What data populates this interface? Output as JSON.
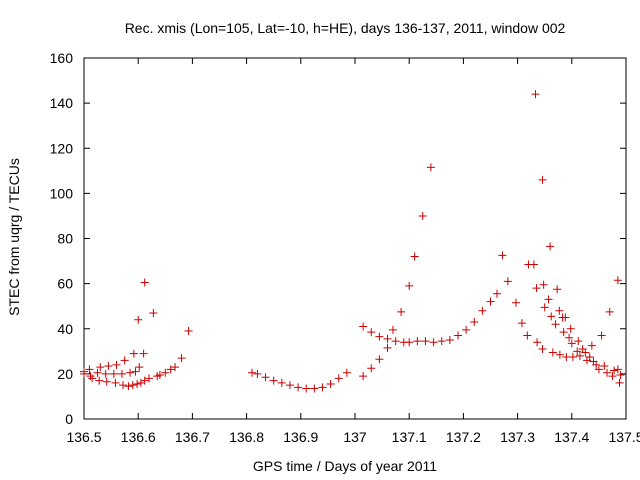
{
  "chart_data": {
    "type": "scatter",
    "title": "Rec. xmis (Lon=105, Lat=-10, h=HE), days 136-137, 2011, window 002",
    "xlabel": "GPS time / Days of year 2011",
    "ylabel": "STEC from uqrg / TECUs",
    "xlim": [
      136.5,
      137.5
    ],
    "ylim": [
      0,
      160
    ],
    "xticks": [
      136.5,
      136.6,
      136.7,
      136.8,
      136.9,
      137.0,
      137.1,
      137.2,
      137.3,
      137.4,
      137.5
    ],
    "xtick_labels": [
      "136.5",
      "136.6",
      "136.7",
      "136.8",
      "136.9",
      "137",
      "137.1",
      "137.2",
      "137.3",
      "137.4",
      "137.5"
    ],
    "yticks": [
      0,
      20,
      40,
      60,
      80,
      100,
      120,
      140,
      160
    ],
    "ytick_labels": [
      "0",
      "20",
      "40",
      "60",
      "80",
      "100",
      "120",
      "140",
      "160"
    ],
    "grid": false,
    "marker": "+",
    "color": "#cc0000",
    "points": [
      [
        136.5,
        21.0
      ],
      [
        136.5,
        20.0
      ],
      [
        136.51,
        22.0
      ],
      [
        136.512,
        19.0
      ],
      [
        136.515,
        18.0
      ],
      [
        136.525,
        20.5
      ],
      [
        136.528,
        17.0
      ],
      [
        136.53,
        23.0
      ],
      [
        136.54,
        20.0
      ],
      [
        136.542,
        16.5
      ],
      [
        136.545,
        23.5
      ],
      [
        136.555,
        20.0
      ],
      [
        136.558,
        16.0
      ],
      [
        136.56,
        24.0
      ],
      [
        136.57,
        20.0
      ],
      [
        136.572,
        15.0
      ],
      [
        136.575,
        26.0
      ],
      [
        136.582,
        14.5
      ],
      [
        136.585,
        20.5
      ],
      [
        136.59,
        15.0
      ],
      [
        136.592,
        29.0
      ],
      [
        136.595,
        21.0
      ],
      [
        136.598,
        15.5
      ],
      [
        136.6,
        44.0
      ],
      [
        136.602,
        23.0
      ],
      [
        136.605,
        16.0
      ],
      [
        136.61,
        29.0
      ],
      [
        136.612,
        17.0
      ],
      [
        136.612,
        60.5
      ],
      [
        136.62,
        18.0
      ],
      [
        136.628,
        47.0
      ],
      [
        136.635,
        19.0
      ],
      [
        136.64,
        19.5
      ],
      [
        136.65,
        20.5
      ],
      [
        136.66,
        22.0
      ],
      [
        136.668,
        23.0
      ],
      [
        136.68,
        27.0
      ],
      [
        136.693,
        39.0
      ],
      [
        136.81,
        20.5
      ],
      [
        136.82,
        20.0
      ],
      [
        136.835,
        18.5
      ],
      [
        136.85,
        17.0
      ],
      [
        136.865,
        16.0
      ],
      [
        136.88,
        15.0
      ],
      [
        136.895,
        14.0
      ],
      [
        136.91,
        13.5
      ],
      [
        136.925,
        13.5
      ],
      [
        136.94,
        14.0
      ],
      [
        136.955,
        15.5
      ],
      [
        136.97,
        18.0
      ],
      [
        136.985,
        20.5
      ],
      [
        137.015,
        41.0
      ],
      [
        137.015,
        19.0
      ],
      [
        137.03,
        38.5
      ],
      [
        137.03,
        22.5
      ],
      [
        137.045,
        36.5
      ],
      [
        137.045,
        26.5
      ],
      [
        137.06,
        35.5
      ],
      [
        137.06,
        31.5
      ],
      [
        137.07,
        39.5
      ],
      [
        137.075,
        34.5
      ],
      [
        137.085,
        47.5
      ],
      [
        137.09,
        34.0
      ],
      [
        137.1,
        59.0
      ],
      [
        137.1,
        34.0
      ],
      [
        137.11,
        72.0
      ],
      [
        137.115,
        34.5
      ],
      [
        137.125,
        90.0
      ],
      [
        137.13,
        34.5
      ],
      [
        137.14,
        111.5
      ],
      [
        137.145,
        34.0
      ],
      [
        137.16,
        34.5
      ],
      [
        137.175,
        35.0
      ],
      [
        137.19,
        37.0
      ],
      [
        137.205,
        39.5
      ],
      [
        137.22,
        43.0
      ],
      [
        137.235,
        48.0
      ],
      [
        137.25,
        52.0
      ],
      [
        137.262,
        55.5
      ],
      [
        137.272,
        72.5
      ],
      [
        137.282,
        61.0
      ],
      [
        137.297,
        51.5
      ],
      [
        137.308,
        42.5
      ],
      [
        137.318,
        37.0
      ],
      [
        137.32,
        68.5
      ],
      [
        137.33,
        68.5
      ],
      [
        137.333,
        144.0
      ],
      [
        137.335,
        58.0
      ],
      [
        137.336,
        34.0
      ],
      [
        137.346,
        106.0
      ],
      [
        137.346,
        31.0
      ],
      [
        137.348,
        59.5
      ],
      [
        137.35,
        49.5
      ],
      [
        137.357,
        53.0
      ],
      [
        137.36,
        76.5
      ],
      [
        137.362,
        45.5
      ],
      [
        137.365,
        29.5
      ],
      [
        137.37,
        42.0
      ],
      [
        137.373,
        57.5
      ],
      [
        137.377,
        48.0
      ],
      [
        137.378,
        28.5
      ],
      [
        137.383,
        45.0
      ],
      [
        137.385,
        38.5
      ],
      [
        137.388,
        45.0
      ],
      [
        137.39,
        27.5
      ],
      [
        137.395,
        36.0
      ],
      [
        137.398,
        40.0
      ],
      [
        137.4,
        33.5
      ],
      [
        137.402,
        27.5
      ],
      [
        137.41,
        30.0
      ],
      [
        137.412,
        34.5
      ],
      [
        137.415,
        28.0
      ],
      [
        137.42,
        31.0
      ],
      [
        137.425,
        29.5
      ],
      [
        137.428,
        26.0
      ],
      [
        137.433,
        27.5
      ],
      [
        137.437,
        32.5
      ],
      [
        137.44,
        25.5
      ],
      [
        137.445,
        24.0
      ],
      [
        137.45,
        22.0
      ],
      [
        137.455,
        37.0
      ],
      [
        137.46,
        23.5
      ],
      [
        137.465,
        20.5
      ],
      [
        137.47,
        47.5
      ],
      [
        137.475,
        19.0
      ],
      [
        137.478,
        21.5
      ],
      [
        137.485,
        22.0
      ],
      [
        137.485,
        61.5
      ],
      [
        137.488,
        16.0
      ],
      [
        137.49,
        19.5
      ]
    ]
  }
}
